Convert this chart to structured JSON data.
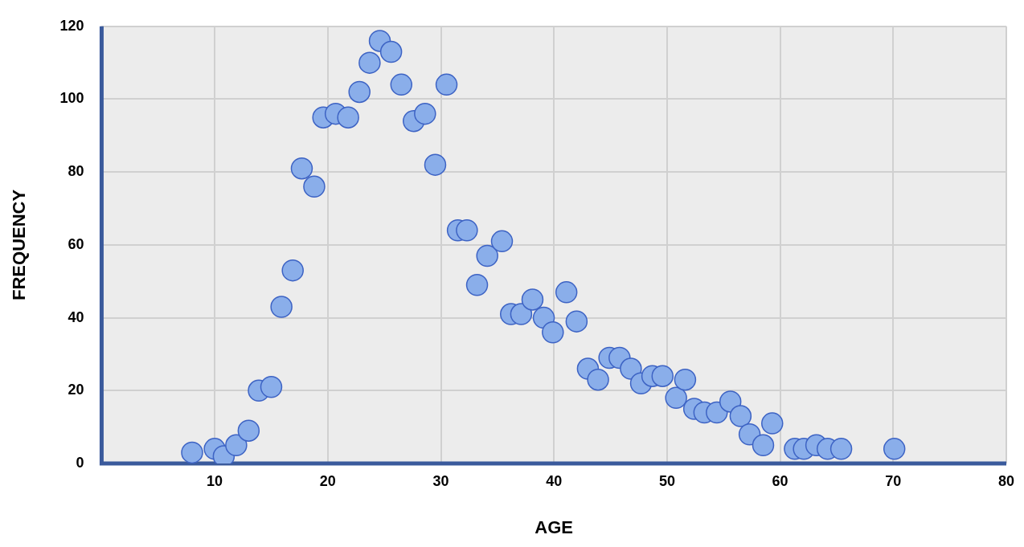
{
  "chart_data": {
    "type": "scatter",
    "xlabel": "AGE",
    "ylabel": "FREQUENCY",
    "xlim": [
      0,
      80
    ],
    "xticks": [
      10,
      20,
      30,
      40,
      50,
      60,
      70,
      80
    ],
    "ylim": [
      0,
      120
    ],
    "yticks": [
      0,
      20,
      40,
      60,
      80,
      100,
      120
    ],
    "grid": true,
    "legend": false,
    "marker": "circle",
    "series": [
      {
        "color": "#8aaeea",
        "x": [
          8.0,
          10.0,
          10.8,
          11.9,
          13.0,
          13.9,
          15.0,
          15.9,
          16.9,
          17.7,
          18.8,
          19.6,
          20.7,
          21.8,
          22.8,
          23.7,
          24.6,
          25.6,
          26.5,
          27.6,
          28.6,
          29.5,
          30.5,
          31.5,
          32.3,
          33.2,
          34.1,
          35.4,
          36.2,
          37.1,
          38.1,
          39.1,
          39.9,
          41.1,
          42.0,
          43.0,
          43.9,
          44.9,
          45.8,
          46.8,
          47.7,
          48.7,
          49.6,
          50.8,
          51.6,
          52.4,
          53.3,
          54.4,
          55.6,
          56.5,
          57.3,
          58.5,
          59.3,
          61.3,
          62.1,
          63.2,
          64.2,
          65.4,
          70.1
        ],
        "values": [
          3,
          4,
          2,
          5,
          9,
          20,
          21,
          43,
          53,
          81,
          76,
          95,
          96,
          95,
          102,
          110,
          116,
          113,
          104,
          94,
          96,
          82,
          104,
          64,
          64,
          49,
          57,
          61,
          41,
          41,
          45,
          40,
          36,
          47,
          39,
          26,
          23,
          29,
          29,
          26,
          22,
          24,
          24,
          18,
          23,
          15,
          14,
          14,
          17,
          13,
          8,
          5,
          11,
          4,
          4,
          5,
          4,
          4,
          4
        ]
      }
    ]
  }
}
